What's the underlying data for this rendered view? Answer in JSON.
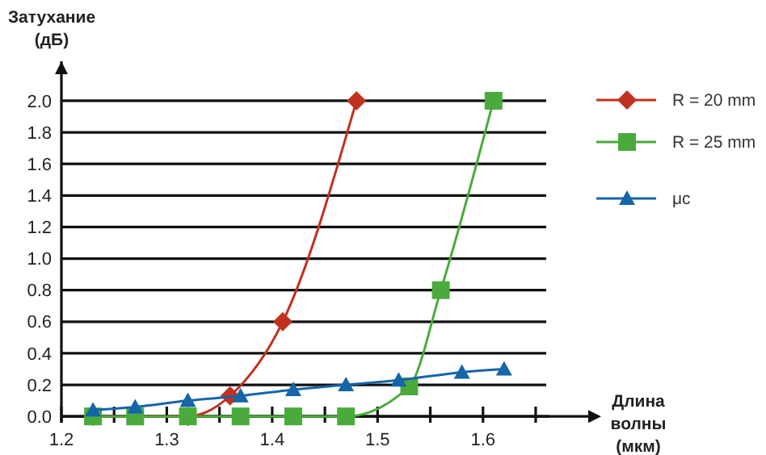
{
  "chart_data": {
    "type": "line",
    "xlabel": "Длина волны (мкм)",
    "ylabel": "Затухание (дБ)",
    "xlim": [
      1.2,
      1.66
    ],
    "ylim": [
      -0.04,
      2.25
    ],
    "xticks": [
      1.2,
      {
        "value": 1.25,
        "label": null
      },
      1.3,
      {
        "value": 1.35,
        "label": null
      },
      1.4,
      {
        "value": 1.45,
        "label": null
      },
      1.5,
      {
        "value": 1.55,
        "label": null
      },
      1.6,
      {
        "value": 1.65,
        "label": null
      }
    ],
    "yticks": [
      {
        "value": 0,
        "label": "0.0"
      },
      0.2,
      0.4,
      0.6,
      0.8,
      {
        "value": 1,
        "label": "1.0"
      },
      1.2,
      1.4,
      1.6,
      1.8,
      {
        "value": 2,
        "label": "2.0"
      }
    ],
    "grid": "y",
    "legend": "right",
    "series": [
      {
        "name": "R = 20 mm",
        "color": "#c0311f",
        "marker": "diamond",
        "x": [
          1.23,
          1.32,
          1.36,
          1.41,
          1.48
        ],
        "values": [
          0,
          0,
          0.13,
          0.6,
          2.0
        ]
      },
      {
        "name": "R = 25 mm",
        "color": "#4aab3c",
        "marker": "square",
        "x": [
          1.23,
          1.27,
          1.32,
          1.37,
          1.42,
          1.47,
          1.53,
          1.56,
          1.61
        ],
        "values": [
          0,
          0,
          0,
          0,
          0,
          0,
          0.19,
          0.8,
          2.0
        ]
      },
      {
        "name": "μc",
        "color": "#1565a8",
        "marker": "triangle",
        "x": [
          1.23,
          1.27,
          1.32,
          1.37,
          1.42,
          1.47,
          1.52,
          1.58,
          1.62
        ],
        "values": [
          0.04,
          0.06,
          0.1,
          0.13,
          0.17,
          0.2,
          0.23,
          0.28,
          0.3
        ]
      }
    ]
  }
}
